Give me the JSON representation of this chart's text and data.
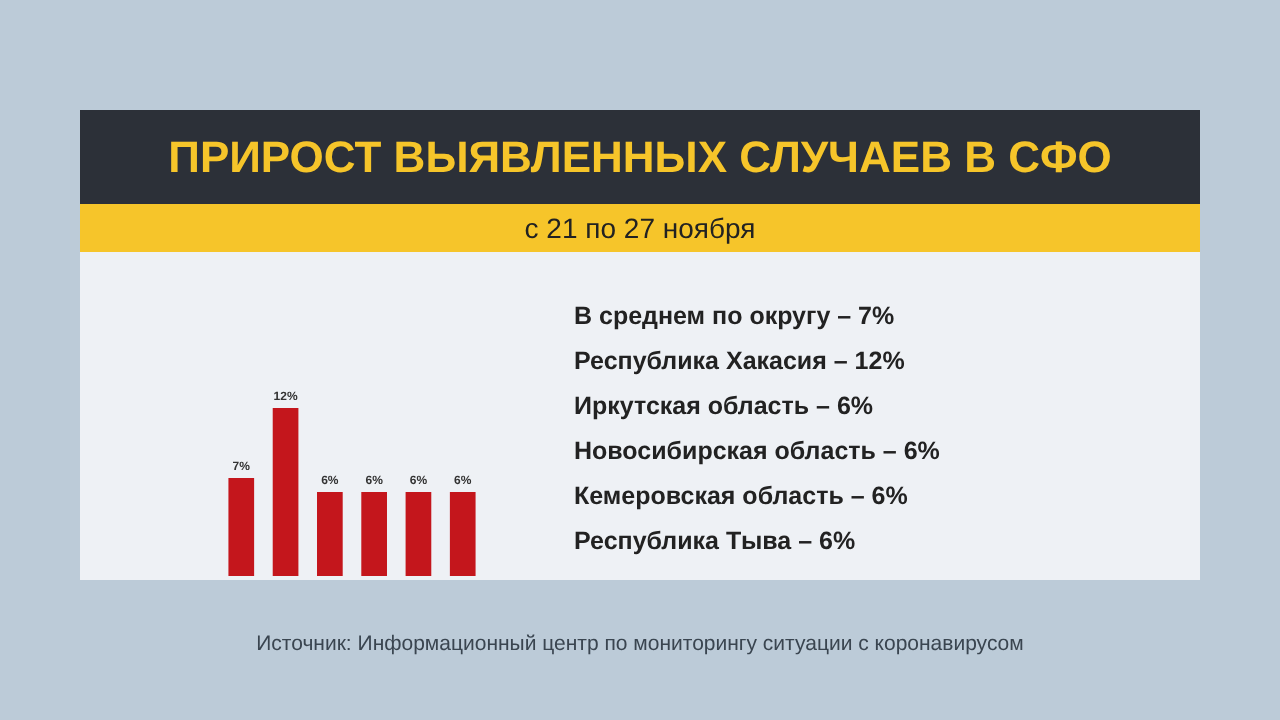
{
  "chart_data": {
    "type": "bar",
    "title": "ПРИРОСТ ВЫЯВЛЕННЫХ СЛУЧАЕВ В СФО",
    "subtitle": "с 21 по 27 ноября",
    "categories": [
      null,
      null,
      null,
      null,
      null,
      null
    ],
    "values": [
      7,
      12,
      6,
      6,
      6,
      6
    ],
    "value_labels": [
      "7%",
      "12%",
      "6%",
      "6%",
      "6%",
      "6%"
    ],
    "color": "#c4161c",
    "annotations": [
      "В среднем по округу – 7%",
      "Республика Хакасия – 12%",
      "Иркутская область – 6%",
      "Новосибирская область – 6%",
      "Кемеровская область – 6%",
      "Республика Тыва – 6%",
      "Источник: Информационный центр по мониторингу ситуации с коронавирусом"
    ]
  }
}
